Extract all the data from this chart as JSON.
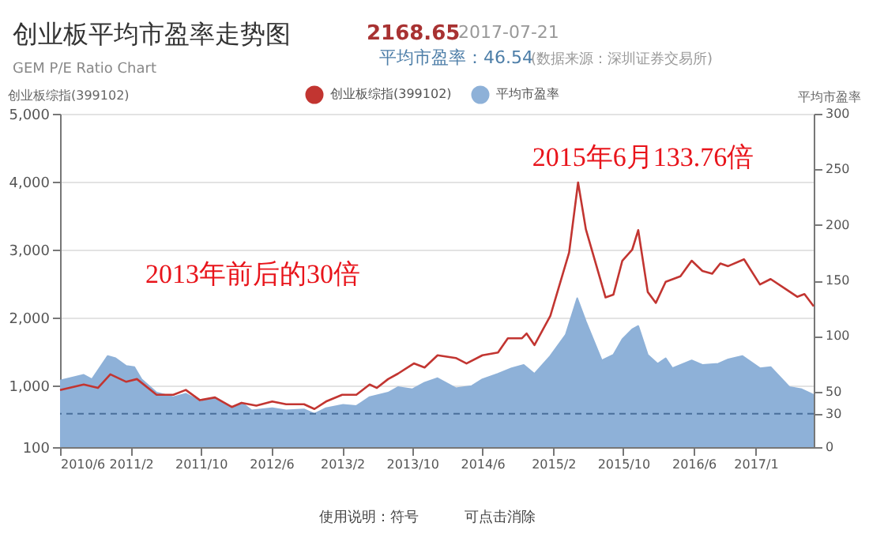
{
  "chart_data": {
    "type": "line",
    "title": "创业板平均市盈率走势图",
    "subtitle": "GEM P/E Ratio Chart",
    "ylabel": "创业板综指(399102)",
    "y2label": "平均市盈率",
    "xlim": [
      "2010-06-01",
      "2017-07-21"
    ],
    "xticks": [
      {
        "value": "2010-06-01",
        "label": "2010/6"
      },
      {
        "value": "2011-02-01",
        "label": "2011/2"
      },
      {
        "value": "2011-10-01",
        "label": "2011/10"
      },
      {
        "value": "2012-06-01",
        "label": "2012/6"
      },
      {
        "value": "2013-02-01",
        "label": "2013/2"
      },
      {
        "value": "2013-10-01",
        "label": "2013/10"
      },
      {
        "value": "2014-06-01",
        "label": "2014/6"
      },
      {
        "value": "2015-02-01",
        "label": "2015/2"
      },
      {
        "value": "2015-10-01",
        "label": "2015/10"
      },
      {
        "value": "2016-06-01",
        "label": "2016/6"
      },
      {
        "value": "2017-01-01",
        "label": "2017/1"
      }
    ],
    "ylim": [
      100,
      5000
    ],
    "yticks": [
      {
        "value": 100,
        "label": "100"
      },
      {
        "value": 1000,
        "label": "1,000"
      },
      {
        "value": 2000,
        "label": "2,000"
      },
      {
        "value": 3000,
        "label": "3,000"
      },
      {
        "value": 4000,
        "label": "4,000"
      },
      {
        "value": 5000,
        "label": "5,000"
      }
    ],
    "y2lim": [
      0,
      300
    ],
    "y2ticks": [
      0,
      30,
      50,
      100,
      150,
      200,
      250,
      300
    ],
    "grid": "y",
    "legend": "top",
    "series": [
      {
        "name": "创业板综指(399102)",
        "color": "#c23531",
        "type": "line",
        "x": [
          "2010-06-01",
          "2010-08-22",
          "2010-10-10",
          "2010-11-22",
          "2011-01-16",
          "2011-02-22",
          "2011-05-01",
          "2011-06-28",
          "2011-08-10",
          "2011-09-28",
          "2011-11-19",
          "2012-01-16",
          "2012-02-19",
          "2012-04-10",
          "2012-06-04",
          "2012-07-22",
          "2012-09-22",
          "2012-10-28",
          "2012-12-07",
          "2013-02-01",
          "2013-03-22",
          "2013-05-07",
          "2013-06-01",
          "2013-07-10",
          "2013-08-13",
          "2013-10-07",
          "2013-11-13",
          "2013-12-28",
          "2014-03-01",
          "2014-04-07",
          "2014-06-01",
          "2014-07-25",
          "2014-08-28",
          "2014-10-16",
          "2014-11-01",
          "2014-11-28",
          "2015-01-22",
          "2015-03-28",
          "2015-04-28",
          "2015-05-25",
          "2015-08-01",
          "2015-08-28",
          "2015-09-28",
          "2015-11-01",
          "2015-11-22",
          "2015-12-25",
          "2016-01-22",
          "2016-02-25",
          "2016-04-16",
          "2016-05-25",
          "2016-07-01",
          "2016-08-04",
          "2016-09-01",
          "2016-09-28",
          "2016-11-22",
          "2017-01-16",
          "2017-02-22",
          "2017-04-16",
          "2017-05-25",
          "2017-06-19",
          "2017-07-21"
        ],
        "values": [
          940,
          1020,
          970,
          1170,
          1060,
          1100,
          870,
          870,
          940,
          790,
          830,
          690,
          750,
          710,
          770,
          730,
          730,
          660,
          770,
          870,
          870,
          1020,
          970,
          1100,
          1180,
          1330,
          1270,
          1450,
          1410,
          1330,
          1450,
          1490,
          1700,
          1700,
          1770,
          1600,
          2030,
          2960,
          3990,
          3300,
          2300,
          2340,
          2840,
          3000,
          3290,
          2380,
          2220,
          2530,
          2610,
          2840,
          2690,
          2650,
          2800,
          2760,
          2860,
          2490,
          2570,
          2420,
          2310,
          2350,
          2170
        ]
      },
      {
        "name": "平均市盈率",
        "color": "#8eb1d8",
        "type": "area",
        "axis": "y2",
        "x": [
          "2010-06-01",
          "2010-08-22",
          "2010-09-19",
          "2010-11-13",
          "2010-12-10",
          "2011-01-16",
          "2011-02-13",
          "2011-03-10",
          "2011-05-01",
          "2011-06-28",
          "2011-08-10",
          "2011-10-01",
          "2011-11-19",
          "2012-01-16",
          "2012-02-19",
          "2012-03-25",
          "2012-06-04",
          "2012-07-22",
          "2012-09-22",
          "2012-10-28",
          "2012-12-07",
          "2013-02-04",
          "2013-03-22",
          "2013-05-07",
          "2013-07-10",
          "2013-08-13",
          "2013-10-01",
          "2013-11-13",
          "2013-12-28",
          "2014-03-01",
          "2014-04-25",
          "2014-06-01",
          "2014-07-25",
          "2014-09-10",
          "2014-10-22",
          "2014-11-28",
          "2015-01-22",
          "2015-03-16",
          "2015-04-25",
          "2015-05-25",
          "2015-07-19",
          "2015-08-28",
          "2015-09-28",
          "2015-11-01",
          "2015-11-22",
          "2015-12-25",
          "2016-01-28",
          "2016-02-25",
          "2016-03-19",
          "2016-05-25",
          "2016-07-01",
          "2016-08-25",
          "2016-09-28",
          "2016-11-16",
          "2017-01-16",
          "2017-02-22",
          "2017-04-28",
          "2017-06-10",
          "2017-07-21"
        ],
        "values": [
          60,
          65,
          61,
          82,
          80,
          73,
          72,
          61,
          49,
          45,
          48,
          41,
          44,
          35,
          40,
          33,
          35,
          33,
          34,
          30,
          35,
          38,
          37,
          45,
          49,
          54,
          52,
          58,
          62,
          53,
          55,
          61,
          66,
          71,
          74,
          66,
          82,
          101,
          134,
          113,
          78,
          83,
          97,
          106,
          109,
          83,
          75,
          80,
          71,
          78,
          74,
          75,
          79,
          82,
          71,
          72,
          54,
          52,
          47
        ]
      }
    ],
    "ref_lines": [
      {
        "axis": "y2",
        "value": 30,
        "color": "#4a6f9a",
        "line_style": "dashed"
      }
    ],
    "annotations": [
      "2168.65",
      "2017-07-21",
      "平均市盈率：46.54",
      "(数据来源：深圳证券交易所)",
      "2013年前后的30倍",
      "2015年6月133.76倍",
      "使用说明：符号",
      "可点击消除"
    ]
  }
}
